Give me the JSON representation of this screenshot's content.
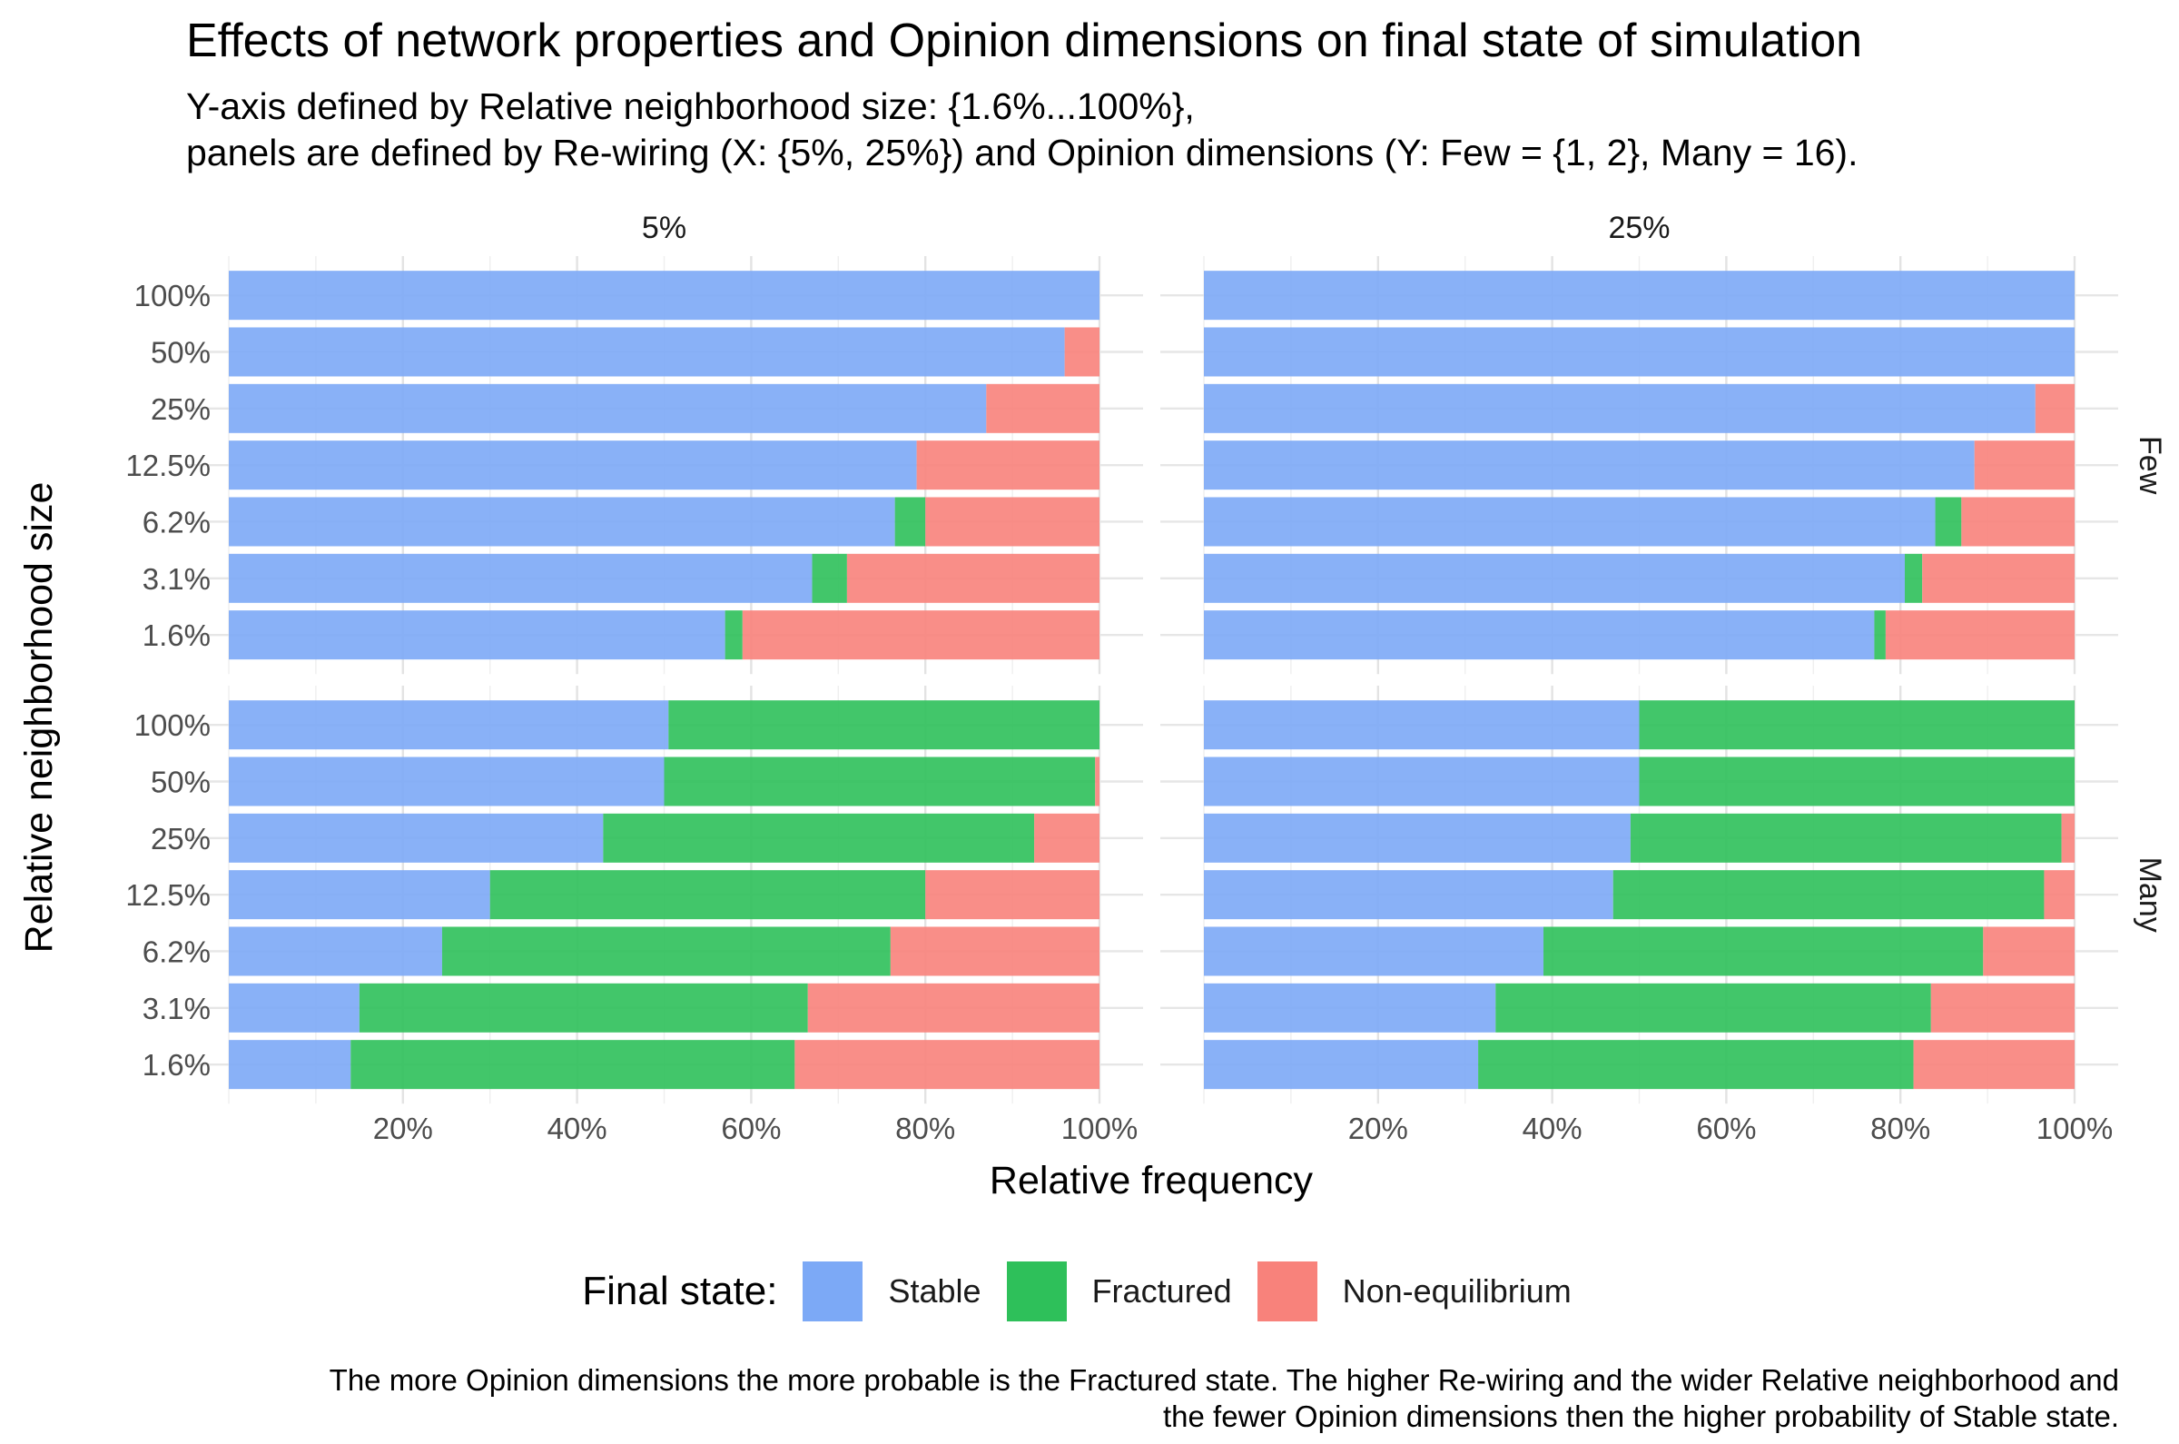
{
  "title": "Effects of network properties and Opinion dimensions on final state of simulation",
  "subtitle_lines": [
    "Y-axis defined by Relative neighborhood size: {1.6%...100%},",
    "panels are defined by Re-wiring (X: {5%, 25%}) and Opinion dimensions (Y: Few = {1, 2}, Many = 16)."
  ],
  "caption_lines": [
    "The more Opinion dimensions the more probable is the  Fractured state. The higher Re-wiring and the wider Relative neighborhood and",
    "the fewer Opinion dimensions then the higher probability of Stable state."
  ],
  "legend": {
    "title": "Final state:",
    "items": [
      {
        "label": "Stable",
        "color": "#7CA9F6"
      },
      {
        "label": "Fractured",
        "color": "#2EC05A"
      },
      {
        "label": "Non-equilibrium",
        "color": "#F8827B"
      }
    ]
  },
  "chart_data": {
    "type": "bar",
    "orientation": "horizontal",
    "stacked": true,
    "xlabel": "Relative frequency",
    "ylabel": "Relative neighborhood size",
    "xlim": [
      0,
      100
    ],
    "x_ticks": [
      "20%",
      "40%",
      "60%",
      "80%",
      "100%"
    ],
    "x_tick_values": [
      20,
      40,
      60,
      80,
      100
    ],
    "categories": [
      "100%",
      "50%",
      "25%",
      "12.5%",
      "6.2%",
      "3.1%",
      "1.6%"
    ],
    "facet_columns": [
      "5%",
      "25%"
    ],
    "facet_rows": [
      "Few",
      "Many"
    ],
    "grid": true,
    "legend_position": "bottom",
    "series_names": [
      "Stable",
      "Fractured",
      "Non-equilibrium"
    ],
    "series_colors": [
      "#7CA9F6",
      "#2EC05A",
      "#F8827B"
    ],
    "panels": [
      {
        "col": "5%",
        "row": "Few",
        "series": [
          {
            "name": "Stable",
            "values": [
              100,
              96,
              87,
              79,
              76.5,
              67,
              57
            ]
          },
          {
            "name": "Fractured",
            "values": [
              0,
              0,
              0,
              0,
              3.5,
              4,
              2
            ]
          },
          {
            "name": "Non-equilibrium",
            "values": [
              0,
              4,
              13,
              21,
              20,
              29,
              41
            ]
          }
        ]
      },
      {
        "col": "25%",
        "row": "Few",
        "series": [
          {
            "name": "Stable",
            "values": [
              100,
              100,
              95.5,
              88.5,
              84,
              80.5,
              77
            ]
          },
          {
            "name": "Fractured",
            "values": [
              0,
              0,
              0,
              0,
              3,
              2,
              1.3
            ]
          },
          {
            "name": "Non-equilibrium",
            "values": [
              0,
              0,
              4.5,
              11.5,
              13,
              17.5,
              21.7
            ]
          }
        ]
      },
      {
        "col": "5%",
        "row": "Many",
        "series": [
          {
            "name": "Stable",
            "values": [
              50.5,
              50,
              43,
              30,
              24.5,
              15,
              14
            ]
          },
          {
            "name": "Fractured",
            "values": [
              49.5,
              49.5,
              49.5,
              50,
              51.5,
              51.5,
              51
            ]
          },
          {
            "name": "Non-equilibrium",
            "values": [
              0,
              0.5,
              7.5,
              20,
              24,
              33.5,
              35
            ]
          }
        ]
      },
      {
        "col": "25%",
        "row": "Many",
        "series": [
          {
            "name": "Stable",
            "values": [
              50,
              50,
              49,
              47,
              39,
              33.5,
              31.5
            ]
          },
          {
            "name": "Fractured",
            "values": [
              50,
              50,
              49.5,
              49.5,
              50.5,
              50,
              50
            ]
          },
          {
            "name": "Non-equilibrium",
            "values": [
              0,
              0,
              1.5,
              3.5,
              10.5,
              16.5,
              18.5
            ]
          }
        ]
      }
    ]
  }
}
